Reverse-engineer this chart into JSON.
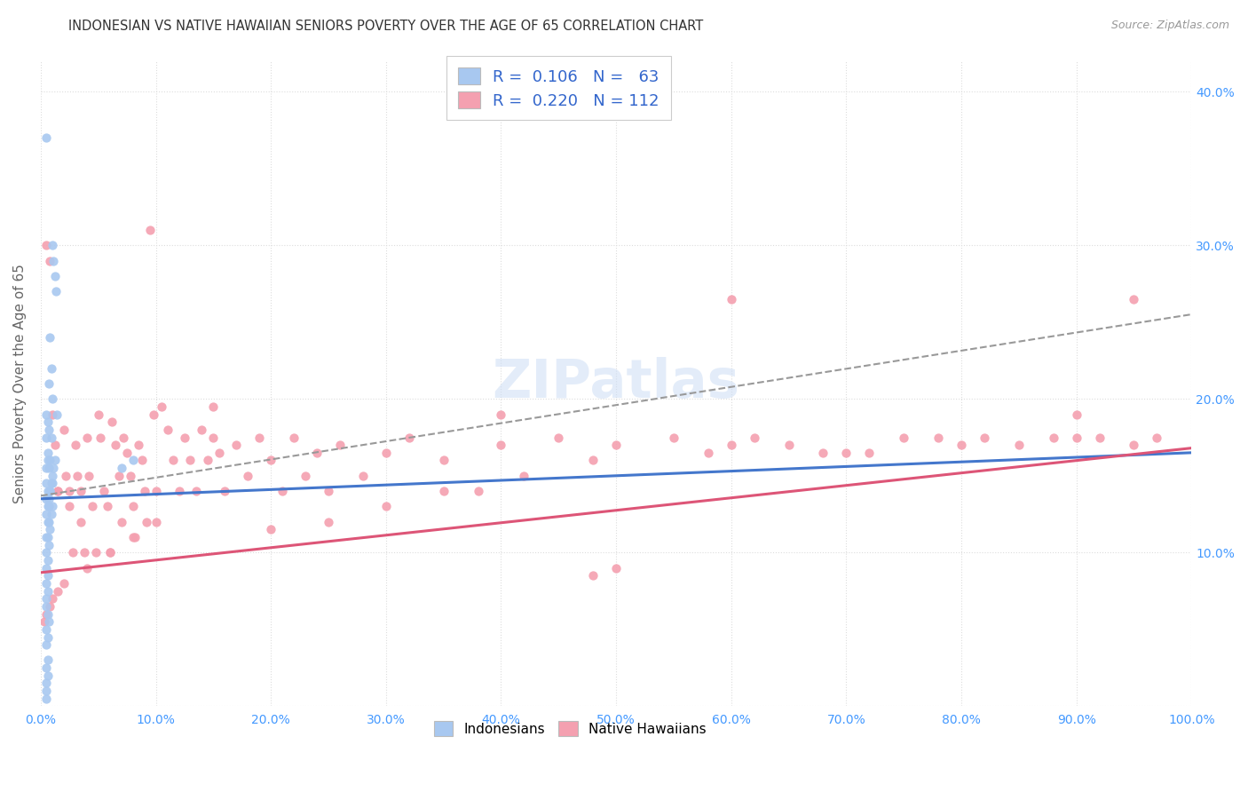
{
  "title": "INDONESIAN VS NATIVE HAWAIIAN SENIORS POVERTY OVER THE AGE OF 65 CORRELATION CHART",
  "source": "Source: ZipAtlas.com",
  "ylabel": "Seniors Poverty Over the Age of 65",
  "xlim": [
    0.0,
    1.0
  ],
  "ylim": [
    0.0,
    0.42
  ],
  "xticks": [
    0.0,
    0.1,
    0.2,
    0.3,
    0.4,
    0.5,
    0.6,
    0.7,
    0.8,
    0.9,
    1.0
  ],
  "xticklabels": [
    "0.0%",
    "10.0%",
    "20.0%",
    "30.0%",
    "40.0%",
    "50.0%",
    "60.0%",
    "70.0%",
    "80.0%",
    "90.0%",
    "100.0%"
  ],
  "yticks": [
    0.0,
    0.1,
    0.2,
    0.3,
    0.4
  ],
  "yticklabels_right": [
    "",
    "10.0%",
    "20.0%",
    "30.0%",
    "40.0%"
  ],
  "color_indonesian": "#a8c8f0",
  "color_hawaiian": "#f4a0b0",
  "color_trendline_blue": "#4477cc",
  "color_trendline_pink": "#dd5577",
  "color_trendline_dashed": "#999999",
  "color_tick": "#4499ff",
  "color_grid": "#dddddd",
  "color_title": "#333333",
  "color_source": "#999999",
  "color_ylabel": "#666666",
  "color_legend_text": "#3366cc",
  "blue_trend_x0": 0.0,
  "blue_trend_y0": 0.135,
  "blue_trend_x1": 1.0,
  "blue_trend_y1": 0.165,
  "pink_trend_x0": 0.0,
  "pink_trend_y0": 0.087,
  "pink_trend_x1": 1.0,
  "pink_trend_y1": 0.168,
  "dash_trend_x0": 0.0,
  "dash_trend_y0": 0.137,
  "dash_trend_x1": 1.0,
  "dash_trend_y1": 0.255,
  "indonesian_x": [
    0.005,
    0.007,
    0.008,
    0.009,
    0.01,
    0.01,
    0.011,
    0.012,
    0.013,
    0.014,
    0.005,
    0.006,
    0.007,
    0.008,
    0.009,
    0.01,
    0.011,
    0.005,
    0.006,
    0.007,
    0.005,
    0.006,
    0.008,
    0.009,
    0.01,
    0.012,
    0.005,
    0.006,
    0.007,
    0.008,
    0.005,
    0.006,
    0.007,
    0.009,
    0.01,
    0.005,
    0.006,
    0.007,
    0.008,
    0.005,
    0.006,
    0.007,
    0.005,
    0.006,
    0.005,
    0.006,
    0.005,
    0.006,
    0.07,
    0.08,
    0.005,
    0.006,
    0.007,
    0.005,
    0.006,
    0.005,
    0.006,
    0.005,
    0.006,
    0.005,
    0.005,
    0.005,
    0.005
  ],
  "indonesian_y": [
    0.37,
    0.21,
    0.24,
    0.22,
    0.2,
    0.3,
    0.29,
    0.28,
    0.27,
    0.19,
    0.175,
    0.165,
    0.155,
    0.16,
    0.175,
    0.145,
    0.155,
    0.19,
    0.185,
    0.18,
    0.155,
    0.16,
    0.14,
    0.145,
    0.15,
    0.16,
    0.145,
    0.14,
    0.135,
    0.14,
    0.135,
    0.13,
    0.13,
    0.125,
    0.13,
    0.125,
    0.12,
    0.12,
    0.115,
    0.11,
    0.11,
    0.105,
    0.1,
    0.095,
    0.09,
    0.085,
    0.08,
    0.075,
    0.155,
    0.16,
    0.065,
    0.06,
    0.055,
    0.05,
    0.045,
    0.04,
    0.03,
    0.025,
    0.02,
    0.015,
    0.01,
    0.005,
    0.07
  ],
  "hawaiian_x": [
    0.005,
    0.008,
    0.01,
    0.012,
    0.015,
    0.015,
    0.02,
    0.022,
    0.025,
    0.025,
    0.028,
    0.03,
    0.032,
    0.035,
    0.035,
    0.038,
    0.04,
    0.042,
    0.045,
    0.048,
    0.05,
    0.052,
    0.055,
    0.058,
    0.06,
    0.062,
    0.065,
    0.068,
    0.07,
    0.072,
    0.075,
    0.078,
    0.08,
    0.082,
    0.085,
    0.088,
    0.09,
    0.092,
    0.095,
    0.098,
    0.1,
    0.105,
    0.11,
    0.115,
    0.12,
    0.125,
    0.13,
    0.135,
    0.14,
    0.145,
    0.15,
    0.155,
    0.16,
    0.17,
    0.18,
    0.19,
    0.2,
    0.21,
    0.22,
    0.23,
    0.24,
    0.25,
    0.26,
    0.28,
    0.3,
    0.32,
    0.35,
    0.38,
    0.4,
    0.42,
    0.45,
    0.48,
    0.5,
    0.5,
    0.55,
    0.58,
    0.6,
    0.62,
    0.65,
    0.68,
    0.7,
    0.72,
    0.75,
    0.78,
    0.8,
    0.82,
    0.85,
    0.88,
    0.9,
    0.92,
    0.95,
    0.97,
    0.4,
    0.35,
    0.3,
    0.25,
    0.2,
    0.15,
    0.1,
    0.08,
    0.06,
    0.04,
    0.02,
    0.015,
    0.01,
    0.008,
    0.005,
    0.003,
    0.48,
    0.9,
    0.6,
    0.95
  ],
  "hawaiian_y": [
    0.3,
    0.29,
    0.19,
    0.17,
    0.14,
    0.14,
    0.18,
    0.15,
    0.14,
    0.13,
    0.1,
    0.17,
    0.15,
    0.14,
    0.12,
    0.1,
    0.175,
    0.15,
    0.13,
    0.1,
    0.19,
    0.175,
    0.14,
    0.13,
    0.1,
    0.185,
    0.17,
    0.15,
    0.12,
    0.175,
    0.165,
    0.15,
    0.13,
    0.11,
    0.17,
    0.16,
    0.14,
    0.12,
    0.31,
    0.19,
    0.12,
    0.195,
    0.18,
    0.16,
    0.14,
    0.175,
    0.16,
    0.14,
    0.18,
    0.16,
    0.175,
    0.165,
    0.14,
    0.17,
    0.15,
    0.175,
    0.16,
    0.14,
    0.175,
    0.15,
    0.165,
    0.14,
    0.17,
    0.15,
    0.165,
    0.175,
    0.16,
    0.14,
    0.17,
    0.15,
    0.175,
    0.16,
    0.17,
    0.09,
    0.175,
    0.165,
    0.17,
    0.175,
    0.17,
    0.165,
    0.165,
    0.165,
    0.175,
    0.175,
    0.17,
    0.175,
    0.17,
    0.175,
    0.175,
    0.175,
    0.17,
    0.175,
    0.19,
    0.14,
    0.13,
    0.12,
    0.115,
    0.195,
    0.14,
    0.11,
    0.1,
    0.09,
    0.08,
    0.075,
    0.07,
    0.065,
    0.06,
    0.055,
    0.085,
    0.19,
    0.265,
    0.265
  ]
}
